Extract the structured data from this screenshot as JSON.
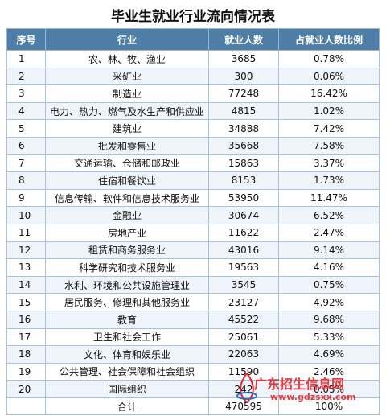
{
  "header": {
    "title": "毕业生就业行业流向情况表"
  },
  "table": {
    "columns": [
      "序号",
      "行业",
      "就业人数",
      "占就业人数比例"
    ],
    "rows": [
      [
        "1",
        "农、林、牧、渔业",
        "3685",
        "0.78%"
      ],
      [
        "2",
        "采矿业",
        "300",
        "0.06%"
      ],
      [
        "3",
        "制造业",
        "77248",
        "16.42%"
      ],
      [
        "4",
        "电力、热力、燃气及水生产和供应业",
        "4815",
        "1.02%"
      ],
      [
        "5",
        "建筑业",
        "34888",
        "7.42%"
      ],
      [
        "6",
        "批发和零售业",
        "35668",
        "7.58%"
      ],
      [
        "7",
        "交通运输、仓储和邮政业",
        "15863",
        "3.37%"
      ],
      [
        "8",
        "住宿和餐饮业",
        "8153",
        "1.73%"
      ],
      [
        "9",
        "信息传输、软件和信息技术服务业",
        "53950",
        "11.47%"
      ],
      [
        "10",
        "金融业",
        "30674",
        "6.52%"
      ],
      [
        "11",
        "房地产业",
        "11622",
        "2.47%"
      ],
      [
        "12",
        "租赁和商务服务业",
        "43016",
        "9.14%"
      ],
      [
        "13",
        "科学研究和技术服务业",
        "19563",
        "4.16%"
      ],
      [
        "14",
        "水利、环境和公共设施管理业",
        "3545",
        "0.75%"
      ],
      [
        "15",
        "居民服务、修理和其他服务业",
        "23127",
        "4.92%"
      ],
      [
        "16",
        "教育",
        "45522",
        "9.68%"
      ],
      [
        "17",
        "卫生和社会工作",
        "25061",
        "5.33%"
      ],
      [
        "18",
        "文化、体育和娱乐业",
        "22063",
        "4.69%"
      ],
      [
        "19",
        "公共管理、社会保障和社会组织",
        "11590",
        "2.46%"
      ],
      [
        "20",
        "国际组织",
        "242",
        "0.05%"
      ],
      [
        "",
        "合计",
        "470595",
        "100%"
      ]
    ]
  },
  "watermark": {
    "name": "广东招生信息网",
    "url": "www.gdzsxx.com"
  }
}
